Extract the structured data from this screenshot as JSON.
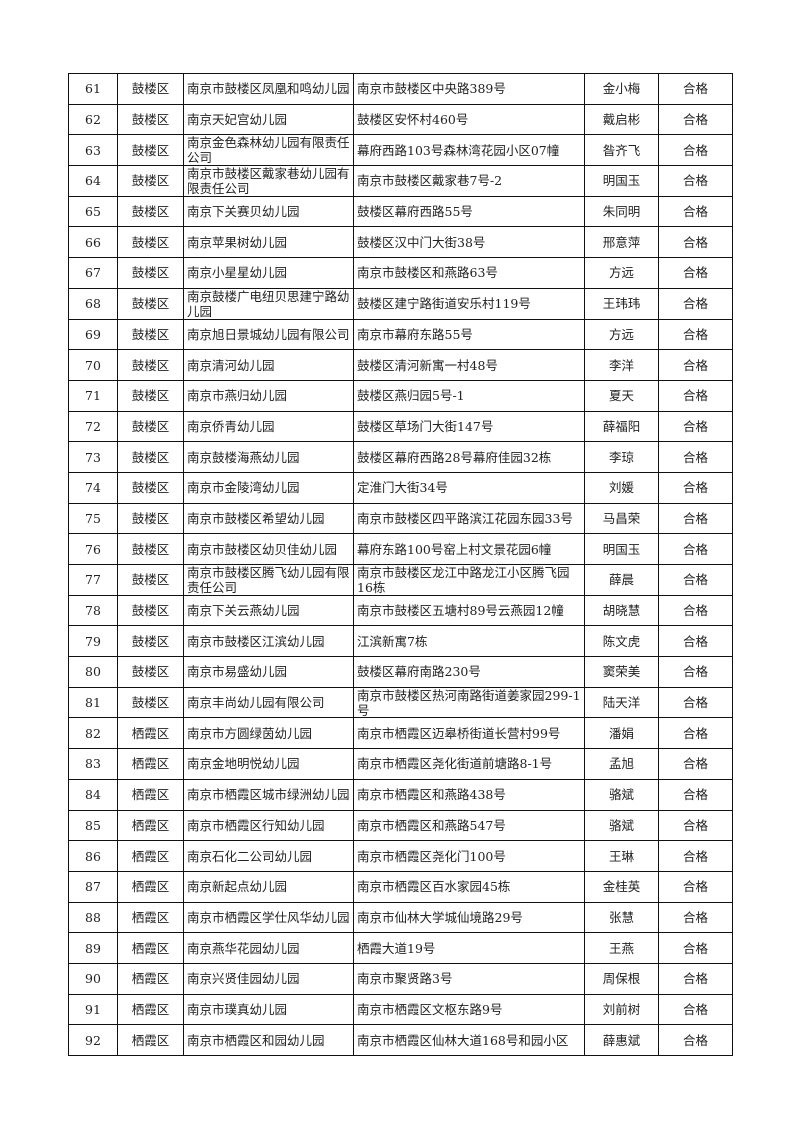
{
  "table": {
    "rows": [
      [
        "61",
        "鼓楼区",
        "南京市鼓楼区凤凰和鸣幼儿园",
        "南京市鼓楼区中央路389号",
        "金小梅",
        "合格"
      ],
      [
        "62",
        "鼓楼区",
        "南京天妃宫幼儿园",
        "鼓楼区安怀村460号",
        "戴启彬",
        "合格"
      ],
      [
        "63",
        "鼓楼区",
        "南京金色森林幼儿园有限责任公司",
        "幕府西路103号森林湾花园小区07幢",
        "昝齐飞",
        "合格"
      ],
      [
        "64",
        "鼓楼区",
        "南京市鼓楼区戴家巷幼儿园有限责任公司",
        "南京市鼓楼区戴家巷7号-2",
        "明国玉",
        "合格"
      ],
      [
        "65",
        "鼓楼区",
        "南京下关赛贝幼儿园",
        "鼓楼区幕府西路55号",
        "朱同明",
        "合格"
      ],
      [
        "66",
        "鼓楼区",
        "南京苹果树幼儿园",
        "鼓楼区汉中门大街38号",
        "邢意萍",
        "合格"
      ],
      [
        "67",
        "鼓楼区",
        "南京小星星幼儿园",
        "南京市鼓楼区和燕路63号",
        "方远",
        "合格"
      ],
      [
        "68",
        "鼓楼区",
        "南京鼓楼广电纽贝思建宁路幼儿园",
        "鼓楼区建宁路街道安乐村119号",
        "王玮玮",
        "合格"
      ],
      [
        "69",
        "鼓楼区",
        "南京旭日景城幼儿园有限公司",
        "南京市幕府东路55号",
        "方远",
        "合格"
      ],
      [
        "70",
        "鼓楼区",
        "南京清河幼儿园",
        "鼓楼区清河新寓一村48号",
        "李洋",
        "合格"
      ],
      [
        "71",
        "鼓楼区",
        "南京市燕归幼儿园",
        "鼓楼区燕归园5号-1",
        "夏天",
        "合格"
      ],
      [
        "72",
        "鼓楼区",
        "南京侨青幼儿园",
        "鼓楼区草场门大街147号",
        "薛福阳",
        "合格"
      ],
      [
        "73",
        "鼓楼区",
        "南京鼓楼海燕幼儿园",
        "鼓楼区幕府西路28号幕府佳园32栋",
        "李琼",
        "合格"
      ],
      [
        "74",
        "鼓楼区",
        "南京市金陵湾幼儿园",
        "定淮门大街34号",
        "刘媛",
        "合格"
      ],
      [
        "75",
        "鼓楼区",
        "南京市鼓楼区希望幼儿园",
        "南京市鼓楼区四平路滨江花园东园33号",
        "马昌荣",
        "合格"
      ],
      [
        "76",
        "鼓楼区",
        "南京市鼓楼区幼贝佳幼儿园",
        "幕府东路100号窑上村文景花园6幢",
        "明国玉",
        "合格"
      ],
      [
        "77",
        "鼓楼区",
        "南京市鼓楼区腾飞幼儿园有限责任公司",
        "南京市鼓楼区龙江中路龙江小区腾飞园16栋",
        "薛晨",
        "合格"
      ],
      [
        "78",
        "鼓楼区",
        "南京下关云燕幼儿园",
        "南京市鼓楼区五塘村89号云燕园12幢",
        "胡晓慧",
        "合格"
      ],
      [
        "79",
        "鼓楼区",
        "南京市鼓楼区江滨幼儿园",
        "江滨新寓7栋",
        "陈文虎",
        "合格"
      ],
      [
        "80",
        "鼓楼区",
        "南京市易盛幼儿园",
        "鼓楼区幕府南路230号",
        "窦荣美",
        "合格"
      ],
      [
        "81",
        "鼓楼区",
        "南京丰尚幼儿园有限公司",
        "南京市鼓楼区热河南路街道姜家园299-1号",
        "陆天洋",
        "合格"
      ],
      [
        "82",
        "栖霞区",
        "南京市方圆绿茵幼儿园",
        "南京市栖霞区迈皋桥街道长营村99号",
        "潘娟",
        "合格"
      ],
      [
        "83",
        "栖霞区",
        "南京金地明悦幼儿园",
        "南京市栖霞区尧化街道前塘路8-1号",
        "孟旭",
        "合格"
      ],
      [
        "84",
        "栖霞区",
        "南京市栖霞区城市绿洲幼儿园",
        "南京市栖霞区和燕路438号",
        "骆斌",
        "合格"
      ],
      [
        "85",
        "栖霞区",
        "南京市栖霞区行知幼儿园",
        "南京市栖霞区和燕路547号",
        "骆斌",
        "合格"
      ],
      [
        "86",
        "栖霞区",
        "南京石化二公司幼儿园",
        "南京市栖霞区尧化门100号",
        "王琳",
        "合格"
      ],
      [
        "87",
        "栖霞区",
        "南京新起点幼儿园",
        "南京市栖霞区百水家园45栋",
        "金桂英",
        "合格"
      ],
      [
        "88",
        "栖霞区",
        "南京市栖霞区学仕风华幼儿园",
        "南京市仙林大学城仙境路29号",
        "张慧",
        "合格"
      ],
      [
        "89",
        "栖霞区",
        "南京燕华花园幼儿园",
        "栖霞大道19号",
        "王燕",
        "合格"
      ],
      [
        "90",
        "栖霞区",
        "南京兴贤佳园幼儿园",
        "南京市聚贤路3号",
        "周保根",
        "合格"
      ],
      [
        "91",
        "栖霞区",
        "南京市璞真幼儿园",
        "南京市栖霞区文枢东路9号",
        "刘前树",
        "合格"
      ],
      [
        "92",
        "栖霞区",
        "南京市栖霞区和园幼儿园",
        "南京市栖霞区仙林大道168号和园小区",
        "薛惠斌",
        "合格"
      ]
    ]
  }
}
